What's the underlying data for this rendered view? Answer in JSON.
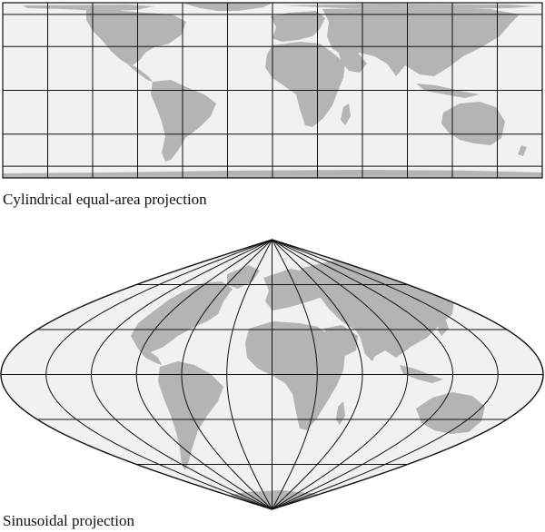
{
  "figure": {
    "panels": [
      {
        "id": "cylindrical",
        "caption": "Cylindrical equal-area projection"
      },
      {
        "id": "sinusoidal",
        "caption": "Sinusoidal projection"
      }
    ],
    "colors": {
      "ocean": "#f1f1f1",
      "land": "#b4b4b4",
      "graticule": "#111111",
      "background": "#ffffff"
    },
    "graticule": {
      "meridian_spacing_deg": 30,
      "parallel_spacing_deg": 30
    }
  }
}
